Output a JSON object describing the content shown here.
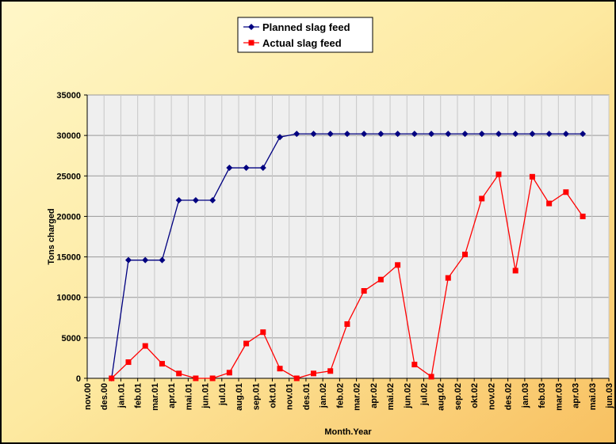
{
  "chart_data": {
    "type": "line",
    "y_label": "Tons charged",
    "x_label": "Month.Year",
    "categories": [
      "nov.00",
      "des.00",
      "jan.01",
      "feb.01",
      "mar.01",
      "apr.01",
      "mai.01",
      "jun.01",
      "jul.01",
      "aug.01",
      "sep.01",
      "okt.01",
      "nov.01",
      "des.01",
      "jan.02",
      "feb.02",
      "mar.02",
      "apr.02",
      "mai.02",
      "jun.02",
      "jul.02",
      "aug.02",
      "sep.02",
      "okt.02",
      "nov.02",
      "des.02",
      "jan.03",
      "feb.03",
      "mar.03",
      "apr.03",
      "mai.03",
      "jun.03"
    ],
    "series": [
      {
        "name": "Planned slag feed",
        "color": "#000080",
        "marker": "diamond",
        "values": [
          null,
          0,
          14600,
          14600,
          14600,
          22000,
          22000,
          22000,
          26000,
          26000,
          26000,
          29800,
          30200,
          30200,
          30200,
          30200,
          30200,
          30200,
          30200,
          30200,
          30200,
          30200,
          30200,
          30200,
          30200,
          30200,
          30200,
          30200,
          30200,
          30200,
          null,
          null
        ]
      },
      {
        "name": "Actual slag feed",
        "color": "#ff0000",
        "marker": "square",
        "values": [
          null,
          0,
          2000,
          4000,
          1800,
          600,
          0,
          0,
          700,
          4300,
          5700,
          1200,
          0,
          600,
          900,
          6700,
          10800,
          12200,
          14000,
          1700,
          200,
          12400,
          15300,
          22200,
          25200,
          13300,
          24900,
          21600,
          23000,
          20000,
          null,
          null
        ]
      }
    ],
    "ylim": [
      0,
      35000
    ],
    "yticks": [
      0,
      5000,
      10000,
      15000,
      20000,
      25000,
      30000,
      35000
    ],
    "grid": true
  }
}
